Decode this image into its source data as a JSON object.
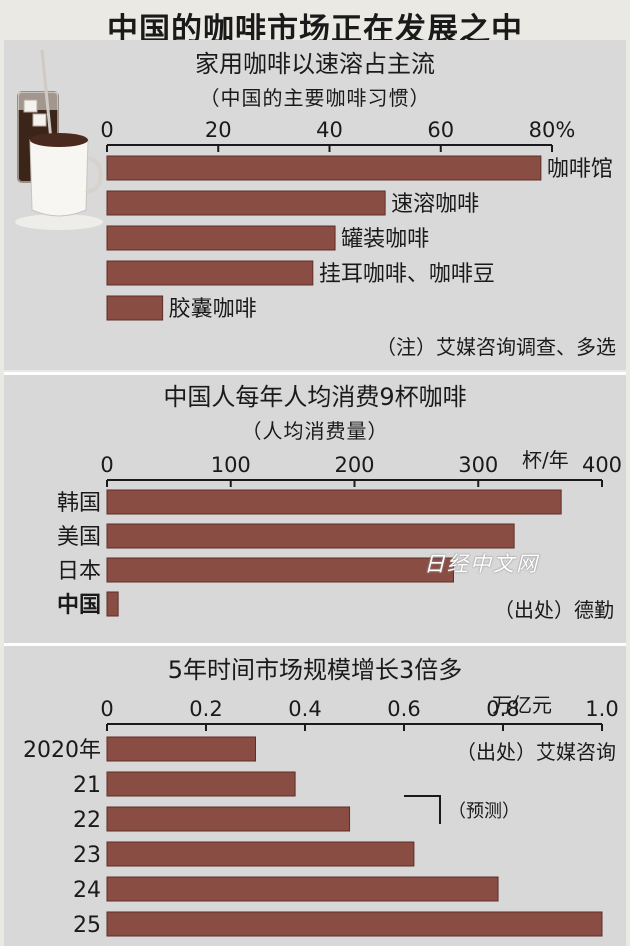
{
  "main_title": "中国的咖啡市场正在发展之中",
  "colors": {
    "bar": "#8a4d44",
    "bar_edge": "#5e2f29",
    "background": "#d8d8d8"
  },
  "chart_data": [
    {
      "type": "bar",
      "orientation": "horizontal",
      "title": "家用咖啡以速溶占主流",
      "subtitle": "（中国的主要咖啡习惯）",
      "tick_labels": [
        "0",
        "20",
        "40",
        "60",
        "80%"
      ],
      "xlim": [
        0,
        80
      ],
      "categories": [
        "咖啡馆",
        "速溶咖啡",
        "罐装咖啡",
        "挂耳咖啡、咖啡豆",
        "胶囊咖啡"
      ],
      "values": [
        78,
        50,
        41,
        37,
        10
      ],
      "note": "（注）艾媒咨询调查、多选",
      "legend": "none",
      "grid": false
    },
    {
      "type": "bar",
      "orientation": "horizontal",
      "title": "中国人每年人均消费9杯咖啡",
      "subtitle": "（人均消费量）",
      "tick_labels": [
        "0",
        "100",
        "200",
        "300",
        "400"
      ],
      "unit": "杯/年",
      "xlim": [
        0,
        400
      ],
      "categories": [
        "韩国",
        "美国",
        "日本",
        "中国"
      ],
      "values": [
        367,
        329,
        280,
        9
      ],
      "source": "（出处）德勤",
      "legend": "none",
      "grid": false
    },
    {
      "type": "bar",
      "orientation": "horizontal",
      "title": "5年时间市场规模增长3倍多",
      "tick_labels": [
        "0",
        "0.2",
        "0.4",
        "0.6",
        "0.8",
        "1.0"
      ],
      "unit": "万亿元",
      "xlim": [
        0,
        1.0
      ],
      "categories": [
        "2020年",
        "21",
        "22",
        "23",
        "24",
        "25"
      ],
      "values": [
        0.3,
        0.38,
        0.49,
        0.62,
        0.79,
        1.0
      ],
      "source": "（出处）艾媒咨询",
      "forecast_label": "（预测）",
      "legend": "none",
      "grid": false
    }
  ],
  "watermark": "日经中文网"
}
